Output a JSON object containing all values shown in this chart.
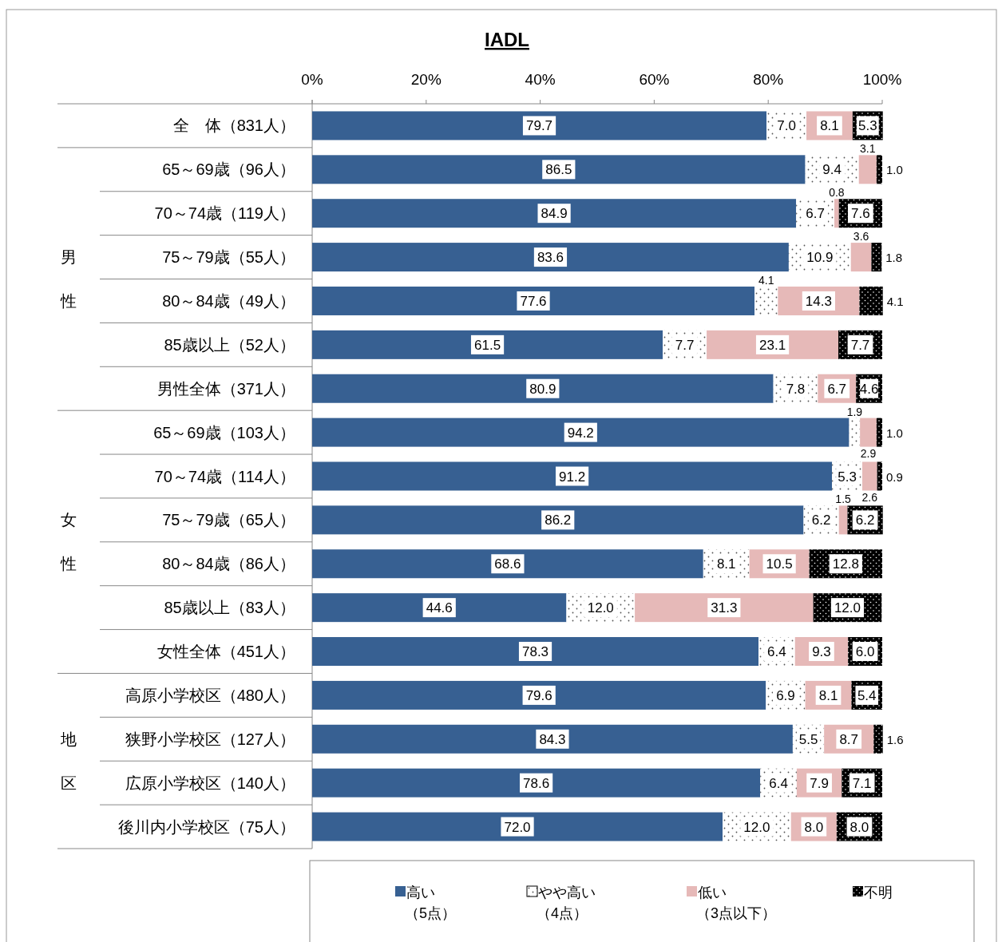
{
  "chart_data": {
    "type": "bar",
    "orientation": "horizontal",
    "stacked": true,
    "title": "IADL",
    "categories": [
      "全　体（831人）",
      "65～69歳（96人）",
      "70～74歳（119人）",
      "75～79歳（55人）",
      "80～84歳（49人）",
      "85歳以上（52人）",
      "男性全体（371人）",
      "65～69歳（103人）",
      "70～74歳（114人）",
      "75～79歳（65人）",
      "80～84歳（86人）",
      "85歳以上（83人）",
      "女性全体（451人）",
      "高原小学校区（480人）",
      "狭野小学校区（127人）",
      "広原小学校区（140人）",
      "後川内小学校区（75人）"
    ],
    "series": [
      {
        "name": "高い（5点）",
        "color": "#376092",
        "values": [
          79.7,
          86.5,
          84.9,
          83.6,
          77.6,
          61.5,
          80.9,
          94.2,
          91.2,
          86.2,
          68.6,
          44.6,
          78.3,
          79.6,
          84.3,
          78.6,
          72.0
        ],
        "value_labels": [
          "79.7",
          "86.5",
          "84.9",
          "83.6",
          "77.6",
          "61.5",
          "80.9",
          "94.2",
          "91.2",
          "86.2",
          "68.6",
          "44.6",
          "78.3",
          "79.6",
          "84.3",
          "78.6",
          "72.0"
        ]
      },
      {
        "name": "やや高い（4点）",
        "color": "#ffffff",
        "values": [
          7.0,
          9.4,
          6.7,
          10.9,
          4.1,
          7.7,
          7.8,
          1.9,
          5.3,
          6.2,
          8.1,
          12.0,
          6.4,
          6.9,
          5.5,
          6.4,
          12.0
        ],
        "value_labels": [
          "7.0",
          "9.4",
          "6.7",
          "10.9",
          "4.1",
          "7.7",
          "7.8",
          "1.9",
          "5.3",
          "6.2",
          "8.1",
          "12.0",
          "6.4",
          "6.9",
          "5.5",
          "6.4",
          "12.0"
        ]
      },
      {
        "name": "低い（3点以下）",
        "color": "#e6b9b8",
        "values": [
          8.1,
          3.1,
          0.8,
          3.6,
          14.3,
          23.1,
          6.7,
          2.9,
          2.6,
          1.5,
          10.5,
          31.3,
          9.3,
          8.1,
          8.7,
          7.9,
          8.0
        ],
        "value_labels": [
          "8.1",
          "3.1",
          "0.8",
          "3.6",
          "14.3",
          "23.1",
          "6.7",
          "2.9",
          "2.6",
          "1.5",
          "10.5",
          "31.3",
          "9.3",
          "8.1",
          "8.7",
          "7.9",
          "8.0"
        ]
      },
      {
        "name": "不明",
        "color": "#000000",
        "values": [
          5.3,
          1.0,
          7.6,
          1.8,
          4.1,
          7.7,
          4.6,
          1.0,
          0.9,
          6.2,
          12.8,
          12.0,
          6.0,
          5.4,
          1.6,
          7.1,
          8.0
        ],
        "value_labels": [
          "5.3",
          "1.0",
          "7.6",
          "1.8",
          "4.1",
          "7.7",
          "4.6",
          "1.0",
          "0.9",
          "6.2",
          "12.8",
          "12.0",
          "6.0",
          "5.4",
          "1.6",
          "7.1",
          "8.0"
        ]
      }
    ],
    "xlim": [
      0,
      100
    ],
    "xticks": [
      {
        "value": 0,
        "label": "0%"
      },
      {
        "value": 20,
        "label": "20%"
      },
      {
        "value": 40,
        "label": "40%"
      },
      {
        "value": 60,
        "label": "60%"
      },
      {
        "value": 80,
        "label": "80%"
      },
      {
        "value": 100,
        "label": "100%"
      }
    ],
    "annotations": [
      "男性",
      "女性",
      "地区"
    ],
    "grid": false,
    "legend": "bottom"
  }
}
